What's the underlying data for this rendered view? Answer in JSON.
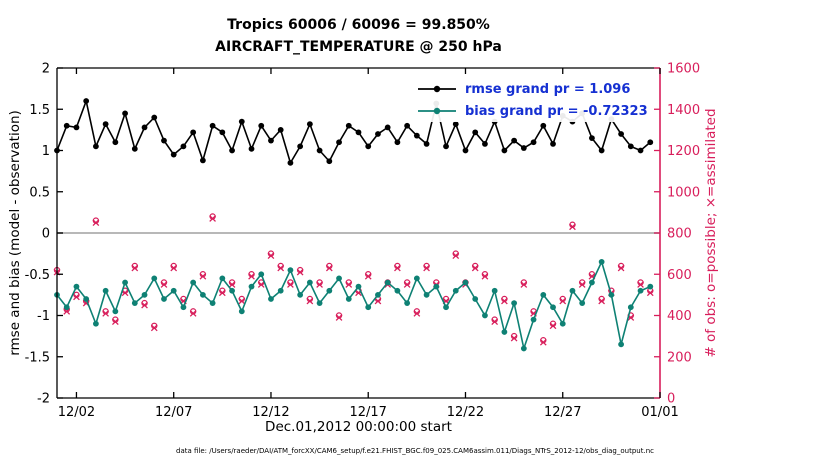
{
  "titles": {
    "line1": "Tropics 60006 / 60096 = 99.850%",
    "line2": "AIRCRAFT_TEMPERATURE @ 250 hPa"
  },
  "axes": {
    "y_left_label": "rmse and bias (model - observation)",
    "y_right_label": "# of obs: o=possible; ×=assimilated",
    "x_label": "Dec.01,2012 00:00:00 start"
  },
  "footer": {
    "text": "data file: /Users/raeder/DAI/ATM_forcXX/CAM6_setup/f.e21.FHIST_BGC.f09_025.CAM6assim.011/Diags_NTrS_2012-12/obs_diag_output.nc"
  },
  "legend": {
    "items": [
      {
        "label": "rmse grand pr = 1.096",
        "color": "#000000"
      },
      {
        "label": "bias grand pr = -0.72323",
        "color": "#0e8174"
      }
    ],
    "text_color": "#1530d2"
  },
  "colors": {
    "rmse": "#000000",
    "bias": "#0e8174",
    "obs": "#d81e5b",
    "zero_line": "#b8b8b8",
    "axis": "#000000"
  },
  "chart_data": {
    "type": "line",
    "title": "Tropics 60006 / 60096 = 99.850% — AIRCRAFT_TEMPERATURE @ 250 hPa",
    "xlabel": "Dec.01,2012 00:00:00 start",
    "ylabel_left": "rmse and bias (model - observation)",
    "ylabel_right": "# of obs: o=possible; ×=assimilated",
    "x_range": [
      0,
      31
    ],
    "x_ticks": {
      "positions": [
        1,
        6,
        11,
        16,
        21,
        26,
        31
      ],
      "labels": [
        "12/02",
        "12/07",
        "12/12",
        "12/17",
        "12/22",
        "12/27",
        "01/01"
      ]
    },
    "y_left": {
      "min": -2,
      "max": 2,
      "tick_values": [
        -2,
        -1.5,
        -1,
        -0.5,
        0,
        0.5,
        1,
        1.5,
        2
      ],
      "tick_labels": [
        "-2",
        "-1.5",
        "-1",
        "-0.5",
        "0",
        "0.5",
        "1",
        "1.5",
        "2"
      ]
    },
    "y_right": {
      "min": 0,
      "max": 1600,
      "tick_values": [
        0,
        200,
        400,
        600,
        800,
        1000,
        1200,
        1400,
        1600
      ],
      "tick_labels": [
        "0",
        "200",
        "400",
        "600",
        "800",
        "1000",
        "1200",
        "1400",
        "1600"
      ]
    },
    "x": [
      0,
      0.5,
      1,
      1.5,
      2,
      2.5,
      3,
      3.5,
      4,
      4.5,
      5,
      5.5,
      6,
      6.5,
      7,
      7.5,
      8,
      8.5,
      9,
      9.5,
      10,
      10.5,
      11,
      11.5,
      12,
      12.5,
      13,
      13.5,
      14,
      14.5,
      15,
      15.5,
      16,
      16.5,
      17,
      17.5,
      18,
      18.5,
      19,
      19.5,
      20,
      20.5,
      21,
      21.5,
      22,
      22.5,
      23,
      23.5,
      24,
      24.5,
      25,
      25.5,
      26,
      26.5,
      27,
      27.5,
      28,
      28.5,
      29,
      29.5,
      30,
      30.5
    ],
    "series": [
      {
        "name": "rmse",
        "axis": "left",
        "style": "line-marker",
        "color": "#000000",
        "grand_mean": 1.096,
        "values": [
          1.0,
          1.3,
          1.28,
          1.6,
          1.05,
          1.32,
          1.1,
          1.45,
          1.02,
          1.28,
          1.4,
          1.12,
          0.95,
          1.05,
          1.22,
          0.88,
          1.3,
          1.22,
          1.0,
          1.35,
          1.02,
          1.3,
          1.12,
          1.25,
          0.85,
          1.05,
          1.32,
          1.0,
          0.87,
          1.1,
          1.3,
          1.22,
          1.05,
          1.2,
          1.28,
          1.1,
          1.3,
          1.18,
          1.08,
          1.57,
          1.05,
          1.32,
          1.0,
          1.22,
          1.08,
          1.35,
          1.0,
          1.12,
          1.03,
          1.1,
          1.3,
          1.08,
          1.42,
          1.35,
          1.45,
          1.15,
          1.0,
          1.38,
          1.2,
          1.05,
          1.0,
          1.1
        ]
      },
      {
        "name": "bias",
        "axis": "left",
        "style": "line-marker",
        "color": "#0e8174",
        "grand_mean": -0.72323,
        "values": [
          -0.75,
          -0.9,
          -0.65,
          -0.8,
          -1.1,
          -0.7,
          -0.95,
          -0.6,
          -0.85,
          -0.75,
          -0.55,
          -0.8,
          -0.7,
          -0.9,
          -0.6,
          -0.75,
          -0.85,
          -0.55,
          -0.7,
          -0.95,
          -0.65,
          -0.5,
          -0.8,
          -0.7,
          -0.45,
          -0.75,
          -0.6,
          -0.85,
          -0.7,
          -0.55,
          -0.8,
          -0.65,
          -0.9,
          -0.75,
          -0.6,
          -0.7,
          -0.85,
          -0.55,
          -0.75,
          -0.65,
          -0.9,
          -0.7,
          -0.6,
          -0.8,
          -1.0,
          -0.7,
          -1.2,
          -0.85,
          -1.4,
          -1.05,
          -0.75,
          -0.9,
          -1.1,
          -0.7,
          -0.85,
          -0.6,
          -0.35,
          -0.75,
          -1.35,
          -0.9,
          -0.7,
          -0.65
        ]
      },
      {
        "name": "obs_possible",
        "axis": "right",
        "style": "marker-o",
        "color": "#d81e5b",
        "values": [
          620,
          430,
          500,
          470,
          860,
          420,
          380,
          520,
          640,
          460,
          350,
          560,
          640,
          480,
          420,
          600,
          880,
          520,
          560,
          480,
          600,
          560,
          700,
          640,
          560,
          620,
          480,
          560,
          640,
          400,
          560,
          520,
          600,
          480,
          560,
          640,
          560,
          420,
          640,
          560,
          480,
          700,
          560,
          640,
          600,
          380,
          480,
          300,
          560,
          420,
          280,
          360,
          480,
          840,
          560,
          600,
          480,
          520,
          640,
          400,
          560,
          520
        ]
      },
      {
        "name": "obs_assimilated",
        "axis": "right",
        "style": "marker-x",
        "color": "#d81e5b",
        "values": [
          610,
          420,
          490,
          460,
          850,
          410,
          370,
          510,
          630,
          450,
          340,
          550,
          630,
          470,
          410,
          590,
          870,
          510,
          550,
          470,
          590,
          550,
          690,
          630,
          550,
          610,
          470,
          550,
          630,
          390,
          550,
          510,
          590,
          470,
          550,
          630,
          550,
          410,
          630,
          550,
          470,
          690,
          550,
          630,
          590,
          370,
          470,
          290,
          550,
          410,
          270,
          350,
          470,
          830,
          550,
          590,
          470,
          510,
          630,
          390,
          550,
          510
        ]
      }
    ]
  }
}
